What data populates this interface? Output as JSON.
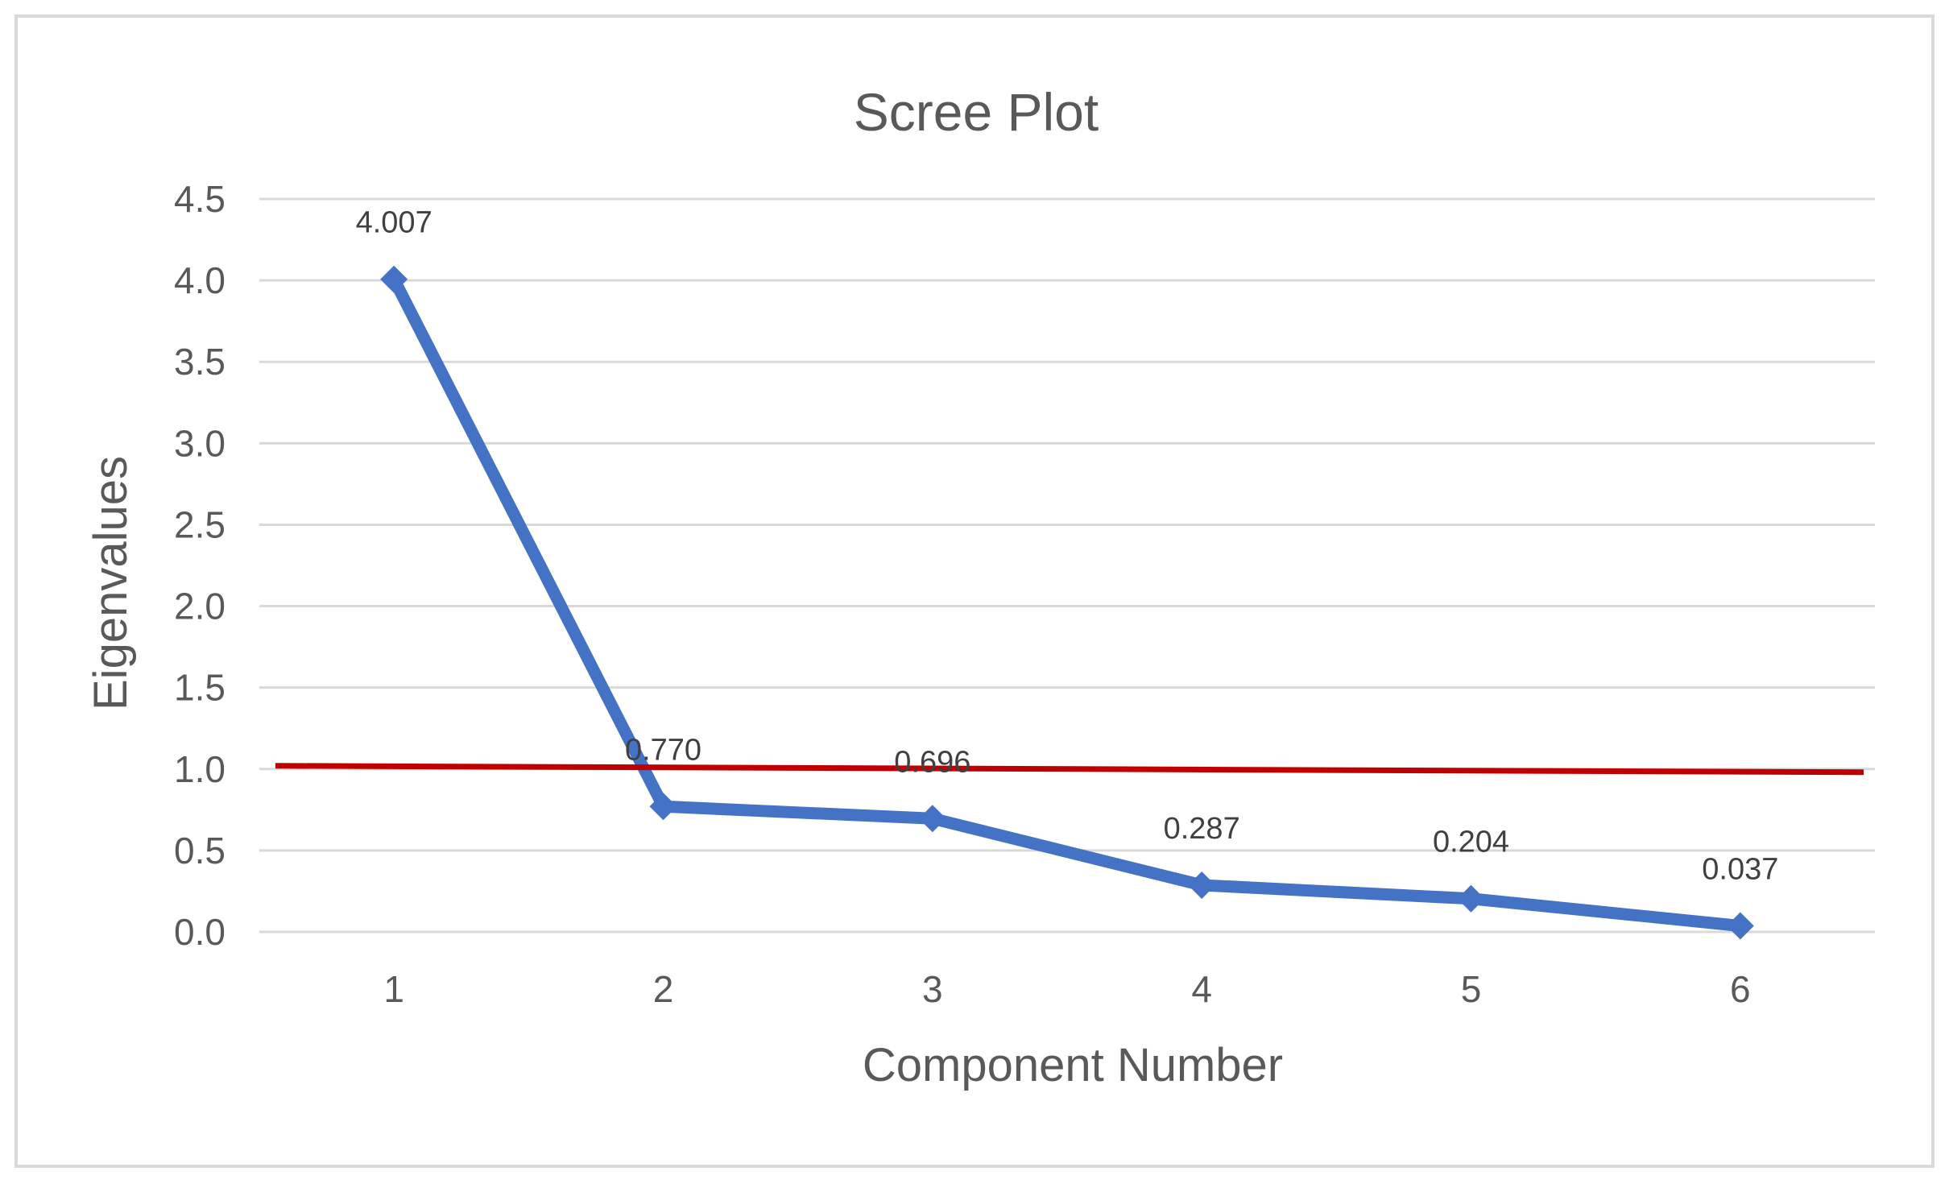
{
  "chart_data": {
    "type": "line",
    "title": "Scree Plot",
    "xlabel": "Component Number",
    "ylabel": "Eigenvalues",
    "categories": [
      "1",
      "2",
      "3",
      "4",
      "5",
      "6"
    ],
    "ylim": [
      0,
      4.5
    ],
    "yticks": [
      "0.0",
      "0.5",
      "1.0",
      "1.5",
      "2.0",
      "2.5",
      "3.0",
      "3.5",
      "4.0",
      "4.5"
    ],
    "grid": true,
    "legend": "none",
    "series": [
      {
        "values": [
          4.007,
          0.77,
          0.696,
          0.287,
          0.204,
          0.037
        ],
        "labels": [
          "4.007",
          "0.770",
          "0.696",
          "0.287",
          "0.204",
          "0.037"
        ],
        "color": "#4472c4",
        "marker": "diamond"
      }
    ],
    "reference_line": {
      "y": 1.0,
      "color": "#c00000"
    }
  }
}
